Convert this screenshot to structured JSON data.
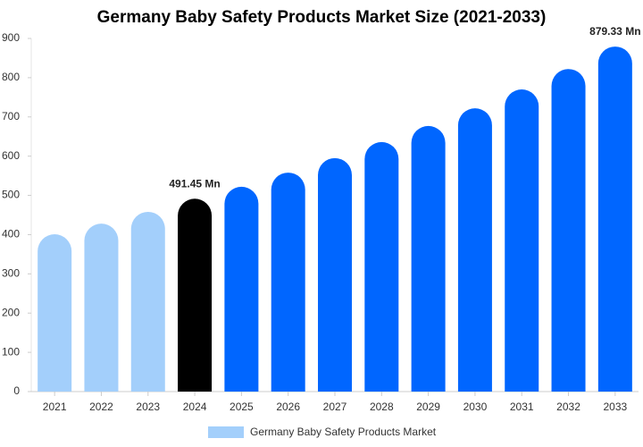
{
  "chart_data": {
    "type": "bar",
    "title": "Germany Baby Safety Products Market Size (2021-2033)",
    "categories": [
      "2021",
      "2022",
      "2023",
      "2024",
      "2025",
      "2026",
      "2027",
      "2028",
      "2029",
      "2030",
      "2031",
      "2032",
      "2033"
    ],
    "series": [
      {
        "name": "Germany Baby Safety Products Market",
        "color": "#a3cffb",
        "colors": [
          "#a3cffb",
          "#a3cffb",
          "#a3cffb",
          "#000000",
          "#0066ff",
          "#0066ff",
          "#0066ff",
          "#0066ff",
          "#0066ff",
          "#0066ff",
          "#0066ff",
          "#0066ff",
          "#0066ff"
        ],
        "values": [
          401,
          428,
          458,
          491.45,
          522,
          558,
          595,
          636,
          677,
          722,
          770,
          822,
          879.33
        ],
        "value_labels": [
          null,
          null,
          null,
          "491.45 Mn",
          null,
          null,
          null,
          null,
          null,
          null,
          null,
          null,
          "879.33 Mn"
        ]
      }
    ],
    "ylim": [
      0,
      900
    ],
    "yticks": [
      0,
      100,
      200,
      300,
      400,
      500,
      600,
      700,
      800,
      900
    ],
    "legend": "bottom"
  }
}
